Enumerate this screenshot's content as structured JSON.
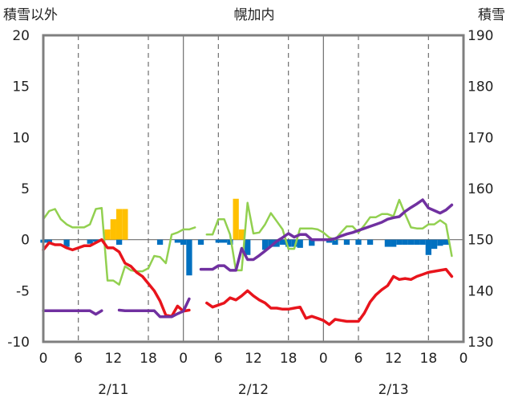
{
  "chart_data": {
    "type": "bar+line",
    "title": "幌加内",
    "left_axis_label": "積雪以外",
    "right_axis_label": "積雪",
    "left_ylim": [
      -10,
      20
    ],
    "right_ylim": [
      130,
      190
    ],
    "left_ticks": [
      "20",
      "15",
      "10",
      "5",
      "0",
      "-5",
      "-10"
    ],
    "right_ticks": [
      "190",
      "180",
      "170",
      "160",
      "150",
      "140",
      "130"
    ],
    "x_tick_labels": [
      "0",
      "6",
      "12",
      "18",
      "0",
      "6",
      "12",
      "18",
      "0",
      "6",
      "12",
      "18",
      "0"
    ],
    "day_labels": [
      "2/11",
      "2/12",
      "2/13"
    ],
    "grid": true,
    "x_hours": [
      0,
      1,
      2,
      3,
      4,
      5,
      6,
      7,
      8,
      9,
      10,
      11,
      12,
      13,
      14,
      15,
      16,
      17,
      18,
      19,
      20,
      21,
      22,
      23,
      24,
      25,
      26,
      27,
      28,
      29,
      30,
      31,
      32,
      33,
      34,
      35,
      36,
      37,
      38,
      39,
      40,
      41,
      42,
      43,
      44,
      45,
      46,
      47,
      48,
      49,
      50,
      51,
      52,
      53,
      54,
      55,
      56,
      57,
      58,
      59,
      60,
      61,
      62,
      63,
      64,
      65,
      66,
      67,
      68,
      69,
      70,
      71,
      72
    ],
    "series": [
      {
        "axis": "left",
        "color": "#e8141c",
        "values": [
          -1.0,
          -0.3,
          -0.5,
          -0.5,
          -0.8,
          -1.0,
          -0.8,
          -0.6,
          -0.6,
          -0.3,
          0.0,
          -0.8,
          -0.8,
          -1.2,
          -2.3,
          -2.6,
          -3.2,
          -3.6,
          -4.3,
          -5.0,
          -6.0,
          -7.4,
          -7.5,
          -6.5,
          -7.0,
          -6.9,
          null,
          null,
          -6.2,
          -6.6,
          -6.4,
          -6.2,
          -5.7,
          -5.9,
          -5.5,
          -5.0,
          -5.5,
          -5.9,
          -6.2,
          -6.7,
          -6.7,
          -6.8,
          -6.8,
          -6.7,
          -6.6,
          -7.7,
          -7.5,
          -7.7,
          -7.9,
          -8.3,
          -7.8,
          -7.9,
          -8.0,
          -8.0,
          -8.0,
          -7.2,
          -6.1,
          -5.4,
          -4.9,
          -4.5,
          -3.6,
          -3.9,
          -3.8,
          -3.9,
          -3.6,
          -3.4,
          -3.2,
          -3.1,
          -3.0,
          -2.9,
          -3.6
        ]
      },
      {
        "axis": "left",
        "color": "#92d050",
        "values": [
          2.0,
          2.8,
          3.0,
          2.0,
          1.5,
          1.2,
          1.2,
          1.2,
          1.5,
          3.0,
          3.1,
          -4.0,
          -4.0,
          -4.4,
          -2.6,
          -3.0,
          -3.1,
          -3.1,
          -2.8,
          -1.6,
          -1.7,
          -2.3,
          0.5,
          0.7,
          1.0,
          1.0,
          1.2,
          null,
          0.5,
          0.5,
          2.0,
          2.0,
          0.5,
          -3.0,
          -3.0,
          3.6,
          0.6,
          0.7,
          1.5,
          2.6,
          1.8,
          1.0,
          -0.9,
          -0.9,
          1.1,
          1.1,
          1.1,
          1.0,
          0.7,
          0.2,
          0.0,
          0.7,
          1.3,
          1.3,
          0.7,
          1.4,
          2.2,
          2.2,
          2.5,
          2.5,
          2.3,
          3.9,
          2.5,
          1.2,
          1.1,
          1.1,
          1.5,
          1.5,
          1.9,
          1.5,
          -1.6
        ]
      },
      {
        "axis": "right",
        "color": "#7030a0",
        "values": [
          136.1,
          136.1,
          136.1,
          136.1,
          136.1,
          136.1,
          136.1,
          136.1,
          136.1,
          135.4,
          136.1,
          null,
          null,
          136.2,
          136.1,
          136.1,
          136.1,
          136.1,
          136.1,
          136.1,
          134.9,
          134.9,
          134.9,
          135.5,
          136.0,
          138.4,
          null,
          144.2,
          144.2,
          144.2,
          144.9,
          144.9,
          144.0,
          144.0,
          148.3,
          146.1,
          146.1,
          146.9,
          147.8,
          148.7,
          149.7,
          150.4,
          151.2,
          150.5,
          151.0,
          151.0,
          150.0,
          150.0,
          150.0,
          150.0,
          150.2,
          150.7,
          151.1,
          151.4,
          151.8,
          152.2,
          152.6,
          153.0,
          153.4,
          154.0,
          154.3,
          154.5,
          155.5,
          156.3,
          157.0,
          157.8,
          156.2,
          155.7,
          155.2,
          155.8,
          156.8
        ]
      }
    ],
    "bars": [
      {
        "name": "",
        "axis": "left",
        "color": "#ffc000",
        "values": [
          [
            11,
            1.0
          ],
          [
            12,
            2.0
          ],
          [
            13,
            3.0
          ],
          [
            14,
            3.0
          ],
          [
            33,
            4.0
          ],
          [
            34,
            1.0
          ]
        ]
      },
      {
        "name": "",
        "axis": "left",
        "color": "#0070c0",
        "values": [
          [
            0,
            -0.3
          ],
          [
            1,
            -0.3
          ],
          [
            4,
            -0.7
          ],
          [
            8,
            -0.4
          ],
          [
            9,
            -0.2
          ],
          [
            13,
            -0.5
          ],
          [
            20,
            -0.5
          ],
          [
            23,
            -0.3
          ],
          [
            24,
            -0.5
          ],
          [
            25,
            -3.5
          ],
          [
            27,
            -0.5
          ],
          [
            30,
            -0.3
          ],
          [
            31,
            -0.3
          ],
          [
            32,
            -0.5
          ],
          [
            35,
            -1.5
          ],
          [
            38,
            -1.0
          ],
          [
            39,
            -0.7
          ],
          [
            40,
            -0.7
          ],
          [
            41,
            -0.5
          ],
          [
            42,
            -0.7
          ],
          [
            43,
            -0.7
          ],
          [
            44,
            -0.8
          ],
          [
            46,
            -0.6
          ],
          [
            49,
            -0.3
          ],
          [
            50,
            -0.5
          ],
          [
            52,
            -0.5
          ],
          [
            54,
            -0.5
          ],
          [
            56,
            -0.5
          ],
          [
            59,
            -0.7
          ],
          [
            60,
            -0.7
          ],
          [
            61,
            -0.5
          ],
          [
            62,
            -0.5
          ],
          [
            63,
            -0.5
          ],
          [
            64,
            -0.5
          ],
          [
            65,
            -0.5
          ],
          [
            66,
            -1.5
          ],
          [
            67,
            -0.9
          ],
          [
            68,
            -0.6
          ],
          [
            69,
            -0.5
          ]
        ]
      }
    ]
  }
}
